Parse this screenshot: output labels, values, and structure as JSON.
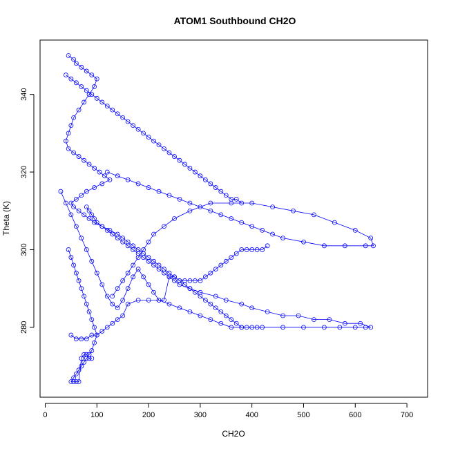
{
  "chart_data": {
    "type": "scatter",
    "title": "ATOM1 Southbound CH2O",
    "xlabel": "CH2O",
    "ylabel": "Theta (K)",
    "xlim": [
      -10,
      740
    ],
    "ylim": [
      262,
      354
    ],
    "xticks": [
      0,
      100,
      200,
      300,
      400,
      500,
      600,
      700
    ],
    "yticks": [
      280,
      300,
      320,
      340
    ],
    "grid": false,
    "legend": "none",
    "point_style": "open-circle",
    "connected": true,
    "color": "#0000ff",
    "series": [
      {
        "x": [
          45,
          55,
          60,
          70,
          80,
          90,
          100,
          95,
          85,
          75,
          65,
          55,
          50,
          45,
          40,
          45,
          55,
          65,
          75,
          85,
          95,
          105,
          115,
          125,
          110,
          95,
          80,
          70,
          60,
          50,
          55,
          65,
          75,
          85,
          95,
          110,
          125,
          140,
          150,
          160,
          170,
          180,
          190,
          200,
          210,
          220,
          230,
          240,
          250,
          260,
          270,
          280,
          290,
          300,
          310,
          320,
          330,
          340,
          350,
          360,
          370,
          380,
          390,
          400,
          410,
          420,
          460,
          500,
          540,
          570,
          600,
          620,
          630,
          610,
          580,
          550,
          520,
          490,
          460,
          430,
          400,
          380,
          350,
          330,
          300,
          280,
          260,
          250,
          240,
          230,
          220,
          210,
          200,
          190,
          180,
          170,
          160,
          150,
          140,
          130,
          120,
          110,
          100,
          95,
          90,
          85,
          80
        ],
        "y": [
          350,
          349,
          348,
          347,
          346,
          345,
          344,
          342,
          340,
          338,
          336,
          334,
          332,
          330,
          328,
          326,
          325,
          324,
          323,
          322,
          321,
          320,
          319,
          318,
          317,
          316,
          315,
          314,
          313,
          312,
          311,
          310,
          309,
          308,
          307,
          306,
          305,
          304,
          303,
          302,
          301,
          300,
          299,
          298,
          297,
          296,
          295,
          294,
          293,
          292,
          291,
          290,
          289,
          288,
          287,
          286,
          285,
          284,
          283,
          282,
          281,
          280,
          280,
          280,
          280,
          280,
          280,
          280,
          280,
          280,
          280,
          280,
          280,
          281,
          281,
          282,
          282,
          283,
          283,
          284,
          285,
          286,
          287,
          288,
          289,
          290,
          291,
          292,
          293,
          294,
          295,
          296,
          297,
          298,
          299,
          300,
          301,
          302,
          303,
          304,
          305,
          306,
          307,
          308,
          309,
          310,
          311
        ]
      },
      {
        "x": [
          120,
          140,
          160,
          180,
          200,
          220,
          240,
          260,
          280,
          300,
          320,
          340,
          360,
          380,
          400,
          420,
          440,
          460,
          500,
          540,
          580,
          620,
          635,
          630,
          600,
          560,
          520,
          480,
          440,
          400,
          360,
          320,
          280,
          250,
          230,
          210,
          200,
          190,
          180,
          170,
          160,
          150,
          140,
          130
        ],
        "y": [
          320,
          319,
          318,
          317,
          316,
          315,
          314,
          313,
          312,
          311,
          310,
          309,
          308,
          307,
          306,
          305,
          304,
          303,
          302,
          301,
          301,
          301,
          301,
          303,
          305,
          307,
          309,
          310,
          311,
          312,
          312,
          312,
          310,
          308,
          306,
          304,
          302,
          300,
          298,
          296,
          294,
          292,
          290,
          288
        ]
      },
      {
        "x": [
          30,
          40,
          50,
          60,
          70,
          80,
          90,
          100,
          110,
          120,
          130,
          140,
          150,
          160,
          170,
          180,
          190,
          200,
          210,
          220,
          230,
          240,
          250,
          260,
          270,
          280,
          290,
          300,
          310,
          320,
          330,
          340,
          350,
          360,
          370,
          380,
          390,
          400,
          410,
          420,
          430
        ],
        "y": [
          315,
          312,
          309,
          306,
          303,
          300,
          297,
          294,
          291,
          288,
          286,
          285,
          287,
          290,
          293,
          295,
          293,
          291,
          289,
          287,
          287,
          293,
          293,
          292,
          292,
          292,
          292,
          292,
          293,
          294,
          295,
          296,
          297,
          298,
          299,
          300,
          300,
          300,
          300,
          300,
          301
        ]
      },
      {
        "x": [
          50,
          60,
          70,
          80,
          90,
          100,
          110,
          120,
          130,
          140,
          150,
          160,
          180,
          200,
          220,
          240,
          260,
          280,
          300,
          320,
          340,
          360,
          380
        ],
        "y": [
          278,
          277,
          277,
          277,
          278,
          278,
          279,
          280,
          281,
          282,
          283,
          286,
          287,
          287,
          287,
          286,
          285,
          284,
          283,
          282,
          281,
          280,
          280
        ]
      },
      {
        "x": [
          45,
          50,
          55,
          60,
          65,
          70,
          75,
          80,
          85,
          90,
          95,
          100,
          95,
          90,
          85,
          80,
          75,
          70,
          65,
          60,
          55,
          50,
          55,
          60,
          65,
          70,
          75,
          80,
          85,
          90
        ],
        "y": [
          300,
          298,
          296,
          294,
          292,
          290,
          288,
          286,
          284,
          282,
          280,
          278,
          276,
          274,
          273,
          272,
          271,
          270,
          269,
          268,
          267,
          266,
          266,
          266,
          266,
          272,
          273,
          273,
          272,
          272
        ]
      },
      {
        "x": [
          40,
          50,
          60,
          70,
          80,
          90,
          100,
          110,
          120,
          130,
          140,
          150,
          160,
          170,
          180,
          190,
          200,
          210,
          220,
          230,
          240,
          250,
          260,
          270,
          280,
          290,
          300,
          310,
          320,
          330,
          340,
          350,
          360,
          370,
          380
        ],
        "y": [
          345,
          344,
          343,
          342,
          341,
          340,
          339,
          338,
          337,
          336,
          335,
          334,
          333,
          332,
          331,
          330,
          329,
          328,
          327,
          326,
          325,
          324,
          323,
          322,
          321,
          320,
          319,
          318,
          317,
          316,
          315,
          314,
          313,
          313,
          312
        ]
      }
    ]
  }
}
